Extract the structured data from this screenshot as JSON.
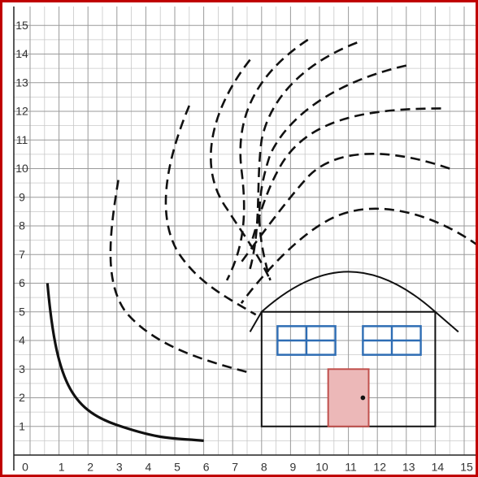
{
  "axes": {
    "xticks": [
      0,
      1,
      2,
      3,
      4,
      5,
      6,
      7,
      8,
      9,
      10,
      11,
      12,
      13,
      14,
      15
    ],
    "yticks": [
      1,
      2,
      3,
      4,
      5,
      6,
      7,
      8,
      9,
      10,
      11,
      12,
      13,
      14,
      15
    ]
  }
}
